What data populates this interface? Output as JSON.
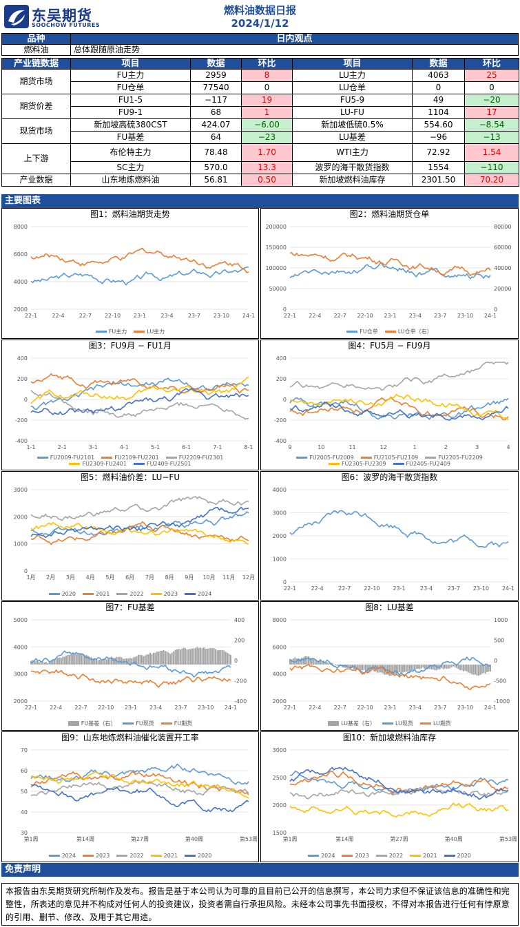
{
  "header": {
    "logo_cn": "东吴期货",
    "logo_en": "SOOCHOW FUTURES",
    "title": "燃料油数据日报",
    "date": "2024/1/12"
  },
  "top": {
    "col1": "品种",
    "col2": "日内观点",
    "product": "燃料油",
    "view": "总体跟随原油走势"
  },
  "chain": {
    "headers": [
      "产业链数据",
      "项目",
      "数据",
      "环比",
      "项目",
      "数据",
      "环比"
    ],
    "rows": [
      {
        "cat": "期货市场",
        "items": [
          [
            "FU主力",
            "2959",
            "8",
            "red"
          ],
          [
            "LU主力",
            "4063",
            "25",
            "red"
          ]
        ]
      },
      {
        "cat": "",
        "items": [
          [
            "FU仓单",
            "77540",
            "0",
            ""
          ],
          [
            "LU仓单",
            "0",
            "0",
            ""
          ]
        ]
      },
      {
        "cat": "期货价差",
        "items": [
          [
            "FU1-5",
            "−117",
            "19",
            "red"
          ],
          [
            "FU5-9",
            "49",
            "−20",
            "green"
          ]
        ]
      },
      {
        "cat": "",
        "items": [
          [
            "FU9-1",
            "68",
            "1",
            "red"
          ],
          [
            "LU-FU",
            "1104",
            "17",
            "red"
          ]
        ]
      },
      {
        "cat": "现货市场",
        "items": [
          [
            "新加坡高硫380CST",
            "424.07",
            "−6.00",
            "green"
          ],
          [
            "新加坡低硫0.5%",
            "554.60",
            "−8.54",
            "green"
          ]
        ]
      },
      {
        "cat": "",
        "items": [
          [
            "FU基差",
            "64",
            "−23",
            "green"
          ],
          [
            "LU基差",
            "−96",
            "−13",
            "green"
          ]
        ]
      },
      {
        "cat": "上下游",
        "items": [
          [
            "布伦特主力",
            "78.48",
            "1.70",
            "red"
          ],
          [
            "WTI主力",
            "72.92",
            "1.54",
            "red"
          ]
        ]
      },
      {
        "cat": "",
        "items": [
          [
            "SC主力",
            "570.0",
            "13.3",
            "red"
          ],
          [
            "波罗的海干散货指数",
            "1554",
            "−110",
            "green"
          ]
        ]
      },
      {
        "cat": "产业数据",
        "items": [
          [
            "山东地炼燃料油",
            "56.81",
            "0.50",
            "red"
          ],
          [
            "新加坡燃料油库存",
            "2301.50",
            "70.20",
            "red"
          ]
        ]
      }
    ]
  },
  "sections": {
    "charts": "主要图表",
    "disclaimer": "免责声明"
  },
  "charts": [
    {
      "title": "图1：燃料油期货走势",
      "yl": [
        "8000",
        "6000",
        "4000",
        "2000"
      ],
      "x": [
        "22-1",
        "22-4",
        "22-7",
        "22-10",
        "23-1",
        "23-4",
        "23-7",
        "23-10",
        "24-1"
      ],
      "legend": [
        "FU主力",
        "LU主力"
      ],
      "colors": [
        "#5b9bd5",
        "#ed7d31"
      ]
    },
    {
      "title": "图2：燃料油期货仓单",
      "yl": [
        "200000",
        "150000",
        "100000",
        "50000",
        "0"
      ],
      "yr": [
        "80000",
        "60000",
        "40000",
        "20000",
        "0"
      ],
      "x": [
        "22-1",
        "22-4",
        "22-7",
        "22-10",
        "23-1",
        "23-4",
        "23-7",
        "23-10",
        "24-1"
      ],
      "legend": [
        "FU仓单",
        "LU仓单（右）"
      ],
      "colors": [
        "#5b9bd5",
        "#ed7d31"
      ]
    },
    {
      "title": "图3：FU9月 − FU1月",
      "yl": [
        "400",
        "200",
        "0",
        "-200",
        "-400"
      ],
      "x": [
        "1-1",
        "2-1",
        "3-1",
        "4-1",
        "5-1",
        "6-1",
        "7-1",
        "8-1"
      ],
      "legend": [
        "FU2009-FU2101",
        "FU2109-FU2201",
        "FU2209-FU2301",
        "FU2309-FU2401",
        "FU2409-FU2501"
      ],
      "colors": [
        "#5b9bd5",
        "#ed7d31",
        "#a5a5a5",
        "#ffc000",
        "#4472c4"
      ]
    },
    {
      "title": "图4：FU5月 − FU9月",
      "yl": [
        "400",
        "200",
        "0",
        "-200",
        "-400"
      ],
      "x": [
        "9",
        "10",
        "11",
        "12",
        "1",
        "2",
        "3",
        "4"
      ],
      "legend": [
        "FU2005-FU2009",
        "FU2105-FU2109",
        "FU2205-FU2209",
        "FU2305-FU2309",
        "FU2405-FU2409"
      ],
      "colors": [
        "#5b9bd5",
        "#ed7d31",
        "#a5a5a5",
        "#ffc000",
        "#4472c4"
      ]
    },
    {
      "title": "图5：燃料油价差：LU−FU",
      "yl": [
        "3000",
        "2000",
        "1000",
        "0"
      ],
      "x": [
        "1月",
        "2月",
        "3月",
        "4月",
        "5月",
        "6月",
        "7月",
        "8月",
        "9月",
        "10月",
        "11月",
        "12月"
      ],
      "legend": [
        "2020",
        "2021",
        "2022",
        "2023",
        "2024"
      ],
      "colors": [
        "#5b9bd5",
        "#ed7d31",
        "#a5a5a5",
        "#ffc000",
        "#4472c4"
      ]
    },
    {
      "title": "图6：波罗的海干散货指数",
      "yl": [
        "4000",
        "3000",
        "2000",
        "1000",
        "0"
      ],
      "x": [
        "22-1",
        "22-4",
        "22-7",
        "22-10",
        "23-1",
        "23-4",
        "23-7",
        "23-10",
        "24-1"
      ],
      "legend": [],
      "colors": [
        "#5b9bd5"
      ]
    },
    {
      "title": "图7：FU基差",
      "yl": [
        "5000",
        "4000",
        "3000",
        "2000"
      ],
      "yr": [
        "400",
        "200",
        "0",
        "-200",
        "-400"
      ],
      "x": [
        "22-1",
        "22-4",
        "22-7",
        "22-10",
        "23-1",
        "23-4",
        "23-7",
        "23-10",
        "24-1"
      ],
      "legend": [
        "FU基差（右）",
        "FU现货",
        "FU期货"
      ],
      "colors": [
        "#a5a5a5",
        "#5b9bd5",
        "#ed7d31"
      ]
    },
    {
      "title": "图8：LU基差",
      "yl": [
        "8000",
        "6000",
        "4000",
        "2000"
      ],
      "yr": [
        "1000",
        "500",
        "0",
        "-500",
        "-1000"
      ],
      "x": [
        "22-1",
        "22-4",
        "22-7",
        "22-10",
        "23-1",
        "23-4",
        "23-7",
        "23-10",
        "24-1"
      ],
      "legend": [
        "LU基差（右）",
        "LU现货",
        "LU期货"
      ],
      "colors": [
        "#a5a5a5",
        "#5b9bd5",
        "#ed7d31"
      ]
    },
    {
      "title": "图9：山东地炼燃料油催化装置开工率",
      "yl": [
        "70",
        "60",
        "50",
        "40",
        "30"
      ],
      "x": [
        "第1周",
        "第14周",
        "第27周",
        "第40周",
        "第53周"
      ],
      "legend": [
        "2024",
        "2023",
        "2022",
        "2021",
        "2020"
      ],
      "colors": [
        "#5b9bd5",
        "#ed7d31",
        "#a5a5a5",
        "#ffc000",
        "#4472c4"
      ]
    },
    {
      "title": "图10：新加坡燃料油库存",
      "yl": [
        "3000",
        "2500",
        "2000",
        "1500"
      ],
      "x": [
        "第1周",
        "第14周",
        "第27周",
        "第40周",
        "第53周"
      ],
      "legend": [
        "2024",
        "2023",
        "2022",
        "2021",
        "2020"
      ],
      "colors": [
        "#5b9bd5",
        "#ed7d31",
        "#a5a5a5",
        "#ffc000",
        "#4472c4"
      ]
    }
  ],
  "disclaimer": "本报告由东吴期货研究所制作及发布。报告是基于本公司认为可靠的且目前已公开的信息撰写，本公司力求但不保证该信息的准确性和完整性，所表述的意见并不构成对任何人的投资建议，投资者需自行承担风险。未经本公司事先书面授权，不得对本报告进行任何有悖原意的引用、删节、修改、及用于其它用途。"
}
